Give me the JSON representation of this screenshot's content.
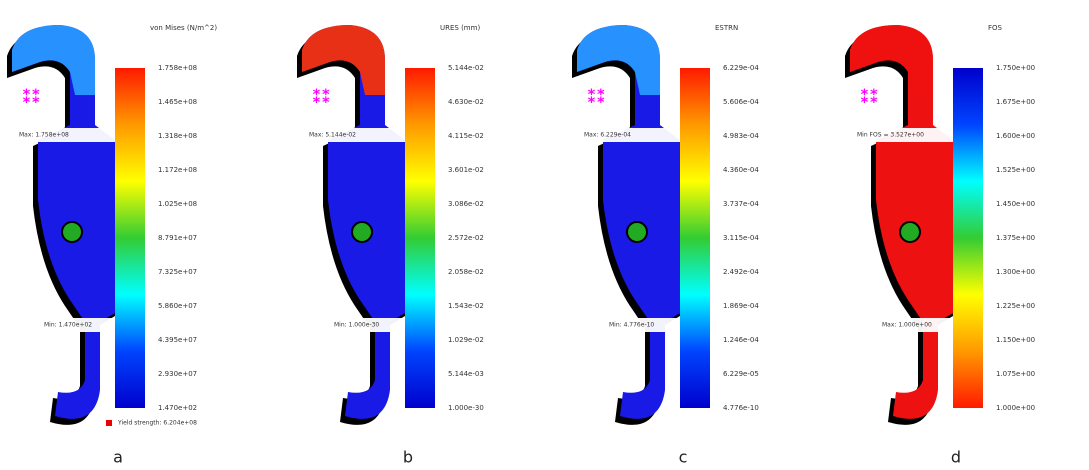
{
  "panels": [
    {
      "label": "a",
      "title": "von Mises (N/m^2)",
      "body_color": "#1a1ae6",
      "cap_color": "#29a0ff",
      "colorbar": [
        "#ff1a00",
        "#ff9900",
        "#ffff00",
        "#33cc33",
        "#00ffff",
        "#0044ff",
        "#0000cc"
      ],
      "ticks": [
        "1.758e+08",
        "1.465e+08",
        "1.318e+08",
        "1.172e+08",
        "1.025e+08",
        "8.791e+07",
        "7.325e+07",
        "5.860e+07",
        "4.395e+07",
        "2.930e+07",
        "1.470e+02"
      ],
      "annotations": [
        "Max: 1.758e+08",
        "Min: 1.470e+02"
      ],
      "note": "Yield strength: 6.204e+08"
    },
    {
      "label": "b",
      "title": "URES (mm)",
      "body_color": "#1a1ae6",
      "cap_color": "#ff3300",
      "colorbar": [
        "#ff1a00",
        "#ff9900",
        "#ffff00",
        "#33cc33",
        "#00ffff",
        "#0044ff",
        "#0000cc"
      ],
      "ticks": [
        "5.144e-02",
        "4.630e-02",
        "4.115e-02",
        "3.601e-02",
        "3.086e-02",
        "2.572e-02",
        "2.058e-02",
        "1.543e-02",
        "1.029e-02",
        "5.144e-03",
        "1.000e-30"
      ],
      "annotations": [
        "Max: 5.144e-02",
        "Min: 1.000e-30"
      ]
    },
    {
      "label": "c",
      "title": "ESTRN",
      "body_color": "#1a1ae6",
      "cap_color": "#29a0ff",
      "colorbar": [
        "#ff1a00",
        "#ff9900",
        "#ffff00",
        "#33cc33",
        "#00ffff",
        "#0044ff",
        "#0000cc"
      ],
      "ticks": [
        "6.229e-04",
        "5.606e-04",
        "4.983e-04",
        "4.360e-04",
        "3.737e-04",
        "3.115e-04",
        "2.492e-04",
        "1.869e-04",
        "1.246e-04",
        "6.229e-05",
        "4.776e-10"
      ],
      "annotations": [
        "Max: 6.229e-04",
        "Min: 4.776e-10"
      ]
    },
    {
      "label": "d",
      "title": "FOS",
      "body_color": "#ee1111",
      "cap_color": "#ee1111",
      "colorbar": [
        "#0000cc",
        "#0044ff",
        "#00ffff",
        "#33cc33",
        "#ffff00",
        "#ff9900",
        "#ff1a00"
      ],
      "ticks": [
        "1.750e+00",
        "1.675e+00",
        "1.600e+00",
        "1.525e+00",
        "1.450e+00",
        "1.375e+00",
        "1.300e+00",
        "1.225e+00",
        "1.150e+00",
        "1.075e+00",
        "1.000e+00"
      ],
      "annotations": [
        "Min FOS = 3.527e+00",
        "Max: 1.000e+00"
      ]
    }
  ]
}
